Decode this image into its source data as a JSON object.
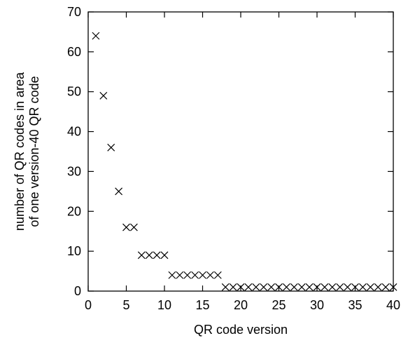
{
  "chart_data": {
    "type": "scatter",
    "title": "",
    "xlabel": "QR code version",
    "ylabel_lines": [
      "number of QR codes in area",
      "of one version-40 QR code"
    ],
    "xlim": [
      0,
      40
    ],
    "ylim": [
      0,
      70
    ],
    "xticks": [
      0,
      5,
      10,
      15,
      20,
      25,
      30,
      35,
      40
    ],
    "yticks": [
      0,
      10,
      20,
      30,
      40,
      50,
      60,
      70
    ],
    "grid": false,
    "marker": "x",
    "marker_color": "#000000",
    "x": [
      1,
      2,
      3,
      4,
      5,
      6,
      7,
      8,
      9,
      10,
      11,
      12,
      13,
      14,
      15,
      16,
      17,
      18,
      19,
      20,
      21,
      22,
      23,
      24,
      25,
      26,
      27,
      28,
      29,
      30,
      31,
      32,
      33,
      34,
      35,
      36,
      37,
      38,
      39,
      40
    ],
    "y": [
      64,
      49,
      36,
      25,
      16,
      16,
      9,
      9,
      9,
      9,
      4,
      4,
      4,
      4,
      4,
      4,
      4,
      1,
      1,
      1,
      1,
      1,
      1,
      1,
      1,
      1,
      1,
      1,
      1,
      1,
      1,
      1,
      1,
      1,
      1,
      1,
      1,
      1,
      1,
      1
    ]
  }
}
